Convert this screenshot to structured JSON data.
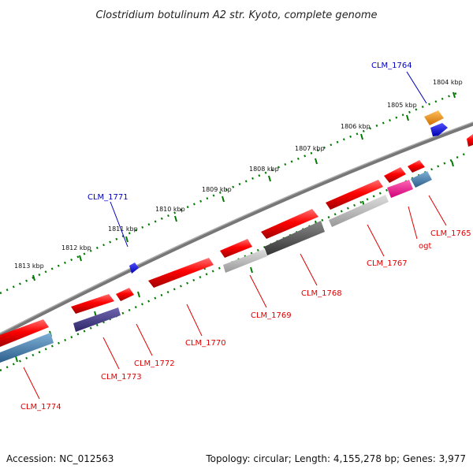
{
  "title": "Clostridium botulinum A2 str. Kyoto, complete genome",
  "footer": {
    "accession": "Accession: NC_012563",
    "topology": "Topology: circular; Length: 4,155,278 bp; Genes: 3,977"
  },
  "kbp_ticks": [
    "1804 kbp",
    "1805 kbp",
    "1806 kbp",
    "1807 kbp",
    "1808 kbp",
    "1809 kbp",
    "1810 kbp",
    "1811 kbp",
    "1812 kbp",
    "1813 kbp"
  ],
  "gene_labels": {
    "clm_1764": "CLM_1764",
    "clm_1765": "CLM_1765",
    "ogt": "ogt",
    "clm_1767": "CLM_1767",
    "clm_1768": "CLM_1768",
    "clm_1769": "CLM_1769",
    "clm_1770": "CLM_1770",
    "clm_1771": "CLM_1771",
    "clm_1772": "CLM_1772",
    "clm_1773": "CLM_1773",
    "clm_1774": "CLM_1774"
  },
  "colors": {
    "gene_red": "#ff0000",
    "rna_blue": "#0000ff",
    "orange": "#ff9900",
    "steel_blue": "#4682b4",
    "magenta": "#ff1493",
    "dark_gray": "#555555",
    "light_gray": "#bbbbbb",
    "indigo": "#483d8b",
    "tick_green": "#007a00",
    "backbone": "#777777"
  }
}
